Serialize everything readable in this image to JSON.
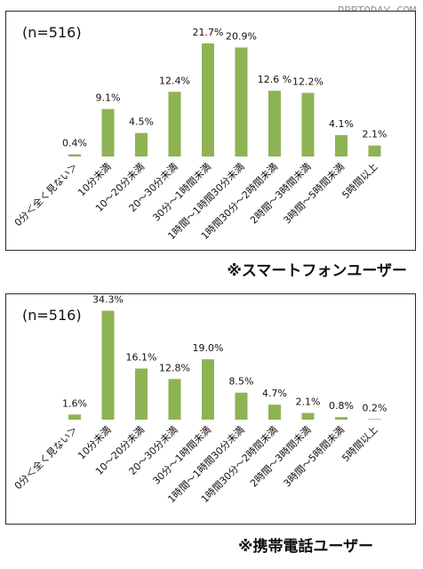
{
  "watermark": "RBBTODAY.COM",
  "chart_data": [
    {
      "type": "bar",
      "note": "(n=516)",
      "caption": "※スマートフォンユーザー",
      "categories": [
        "0分＜全く見ない＞",
        "10分未満",
        "10～20分未満",
        "20～30分未満",
        "30分～1時間未満",
        "1時間～1時間30分未満",
        "1時間30分～2時間未満",
        "2時間～3時間未満",
        "3時間～5時間未満",
        "5時間以上"
      ],
      "values": [
        0.4,
        9.1,
        4.5,
        12.4,
        21.7,
        20.9,
        12.6,
        12.2,
        4.1,
        2.1
      ],
      "labels": [
        "0.4%",
        "9.1%",
        "4.5%",
        "12.4%",
        "21.7%",
        "20.9%",
        "12.6 %",
        "12.2%",
        "4.1%",
        "2.1%"
      ],
      "ylim": [
        0,
        22
      ],
      "bar_color": "#8db353"
    },
    {
      "type": "bar",
      "note": "(n=516)",
      "caption": "※携帯電話ユーザー",
      "categories": [
        "0分＜全く見ない＞",
        "10分未満",
        "10～20分未満",
        "20～30分未満",
        "30分～1時間未満",
        "1時間～1時間30分未満",
        "1時間30分～2時間未満",
        "2時間～3時間未満",
        "3時間～5時間未満",
        "5時間以上"
      ],
      "values": [
        1.6,
        34.3,
        16.1,
        12.8,
        19.0,
        8.5,
        4.7,
        2.1,
        0.8,
        0.2
      ],
      "labels": [
        "1.6%",
        "34.3%",
        "16.1%",
        "12.8%",
        "19.0%",
        "8.5%",
        "4.7%",
        "2.1%",
        "0.8%",
        "0.2%"
      ],
      "ylim": [
        0,
        35
      ],
      "bar_color": "#8db353"
    }
  ]
}
